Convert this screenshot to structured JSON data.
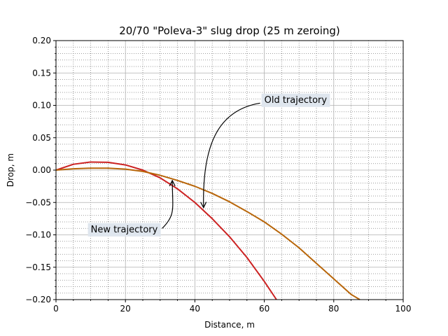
{
  "chart_data": {
    "type": "line",
    "title": "20/70 \"Poleva-3\" slug drop (25 m zeroing)",
    "xlabel": "Distance, m",
    "ylabel": "Drop, m",
    "xlim": [
      0,
      100
    ],
    "ylim": [
      -0.2,
      0.2
    ],
    "x_ticks": [
      "0",
      "20",
      "40",
      "60",
      "80",
      "100"
    ],
    "y_ticks": [
      "0.20",
      "0.15",
      "0.10",
      "0.05",
      "0.00",
      "−0.05",
      "−0.10",
      "−0.15",
      "−0.20"
    ],
    "grid": true,
    "series": [
      {
        "color": "#cc2222",
        "points": [
          [
            0,
            0.0
          ],
          [
            5,
            0.009
          ],
          [
            10,
            0.0125
          ],
          [
            15,
            0.012
          ],
          [
            20,
            0.008
          ],
          [
            25,
            0.0
          ],
          [
            30,
            -0.012
          ],
          [
            35,
            -0.029
          ],
          [
            40,
            -0.05
          ],
          [
            45,
            -0.075
          ],
          [
            50,
            -0.103
          ],
          [
            55,
            -0.135
          ],
          [
            60,
            -0.172
          ],
          [
            63.5,
            -0.2
          ]
        ]
      },
      {
        "color": "#b8660a",
        "points": [
          [
            0,
            0.0
          ],
          [
            5,
            0.002
          ],
          [
            10,
            0.003
          ],
          [
            15,
            0.003
          ],
          [
            20,
            0.0015
          ],
          [
            25,
            -0.002
          ],
          [
            30,
            -0.008
          ],
          [
            35,
            -0.016
          ],
          [
            40,
            -0.025
          ],
          [
            45,
            -0.036
          ],
          [
            50,
            -0.049
          ],
          [
            55,
            -0.064
          ],
          [
            60,
            -0.08
          ],
          [
            65,
            -0.099
          ],
          [
            70,
            -0.12
          ],
          [
            75,
            -0.144
          ],
          [
            80,
            -0.168
          ],
          [
            85,
            -0.192
          ],
          [
            87.5,
            -0.2
          ]
        ]
      }
    ],
    "annotations": [
      {
        "text": "New trajectory",
        "xy": [
          33.5,
          -0.016
        ],
        "text_xy": [
          10,
          -0.096
        ]
      },
      {
        "text": "Old trajectory",
        "xy": [
          42.5,
          -0.058
        ],
        "text_xy": [
          60,
          0.104
        ]
      }
    ]
  }
}
